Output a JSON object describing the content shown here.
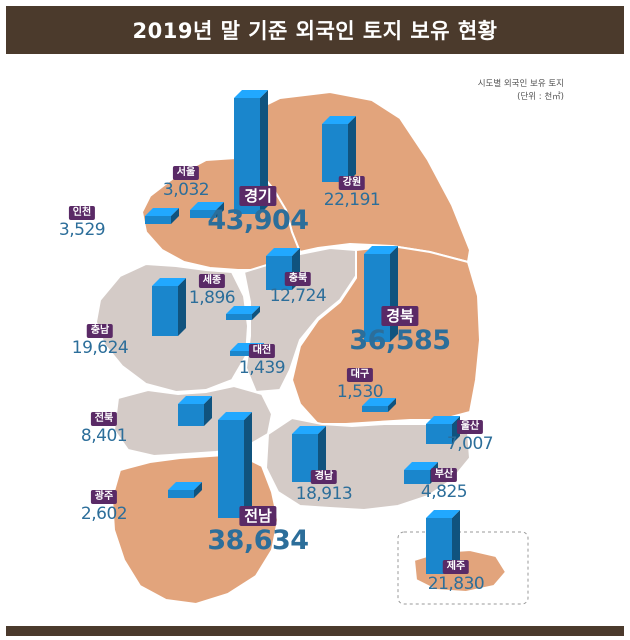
{
  "title": "2019년 말 기준 외국인 토지 보유 현황",
  "legend": {
    "line1": "시도별 외국인 보유 토지",
    "line2": "(단위 : 천㎡)"
  },
  "colors": {
    "title_bar": "#4b3a2c",
    "region_orange": "#e2a47c",
    "region_gray": "#d4cbc7",
    "badge": "#5a2a66",
    "value_text": "#2c6e9a",
    "bar": "#1a86cc"
  },
  "regions": [
    {
      "key": "seoul",
      "name": "서울",
      "value": "3,032",
      "amount": 3032,
      "size": "small"
    },
    {
      "key": "gyeonggi",
      "name": "경기",
      "value": "43,904",
      "amount": 43904,
      "size": "big"
    },
    {
      "key": "gangwon",
      "name": "강원",
      "value": "22,191",
      "amount": 22191,
      "size": "small"
    },
    {
      "key": "incheon",
      "name": "인천",
      "value": "3,529",
      "amount": 3529,
      "size": "small"
    },
    {
      "key": "sejong",
      "name": "세종",
      "value": "1,896",
      "amount": 1896,
      "size": "small"
    },
    {
      "key": "chungbuk",
      "name": "충북",
      "value": "12,724",
      "amount": 12724,
      "size": "small"
    },
    {
      "key": "chungnam",
      "name": "충남",
      "value": "19,624",
      "amount": 19624,
      "size": "small"
    },
    {
      "key": "daejeon",
      "name": "대전",
      "value": "1,439",
      "amount": 1439,
      "size": "small"
    },
    {
      "key": "gyeongbuk",
      "name": "경북",
      "value": "36,585",
      "amount": 36585,
      "size": "big"
    },
    {
      "key": "daegu",
      "name": "대구",
      "value": "1,530",
      "amount": 1530,
      "size": "small"
    },
    {
      "key": "jeonbuk",
      "name": "전북",
      "value": "8,401",
      "amount": 8401,
      "size": "small"
    },
    {
      "key": "ulsan",
      "name": "울산",
      "value": "7,007",
      "amount": 7007,
      "size": "small"
    },
    {
      "key": "gwangju",
      "name": "광주",
      "value": "2,602",
      "amount": 2602,
      "size": "small"
    },
    {
      "key": "gyeongnam",
      "name": "경남",
      "value": "18,913",
      "amount": 18913,
      "size": "small"
    },
    {
      "key": "busan",
      "name": "부산",
      "value": "4,825",
      "amount": 4825,
      "size": "small"
    },
    {
      "key": "jeonnam",
      "name": "전남",
      "value": "38,634",
      "amount": 38634,
      "size": "big"
    },
    {
      "key": "jeju",
      "name": "제주",
      "value": "21,830",
      "amount": 21830,
      "size": "small"
    }
  ]
}
